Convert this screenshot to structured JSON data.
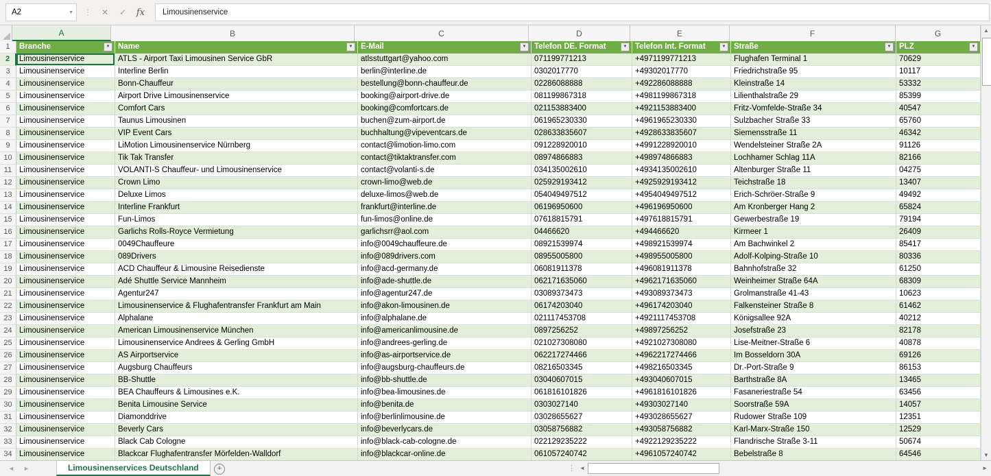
{
  "formula_bar": {
    "cell_reference": "A2",
    "formula_value": "Limousinenservice",
    "fx_label": "fx"
  },
  "icons": {
    "dropdown": "▼",
    "cancel": "✕",
    "enter": "✓",
    "left_arrow": "◄",
    "right_arrow": "►",
    "up_arrow": "▲",
    "down_arrow": "▼",
    "add": "+",
    "splitter": "⋮"
  },
  "selection": {
    "cell": "A2",
    "column": "A",
    "row": 2
  },
  "colors": {
    "header_green": "#70AD47",
    "band_green": "#E2EFDA",
    "active_tab_green": "#217346"
  },
  "grid": {
    "column_letters": [
      "A",
      "B",
      "C",
      "D",
      "E",
      "F",
      "G"
    ],
    "headers": [
      "Branche",
      "Name",
      "E-Mail",
      "Telefon DE. Format",
      "Telefon Int. Format",
      "Straße",
      "PLZ"
    ],
    "first_row_number": 1,
    "rows": [
      {
        "row": 2,
        "cells": [
          "Limousinenservice",
          "ATLS - Airport Taxi Limousinen Service GbR",
          "atlsstuttgart@yahoo.com",
          "071199771213",
          "+4971199771213",
          "Flughafen Terminal 1",
          "70629"
        ]
      },
      {
        "row": 3,
        "cells": [
          "Limousinenservice",
          "Interline Berlin",
          "berlin@interline.de",
          "0302017770",
          "+49302017770",
          "Friedrichstraße 95",
          "10117"
        ]
      },
      {
        "row": 4,
        "cells": [
          "Limousinenservice",
          "Bonn-Chauffeur",
          "bestellung@bonn-chauffeur.de",
          "02286088888",
          "+492286088888",
          "Kleinstraße 14",
          "53332"
        ]
      },
      {
        "row": 5,
        "cells": [
          "Limousinenservice",
          "Airport Drive Limousinenservice",
          "booking@airport-drive.de",
          "081199867318",
          "+4981199867318",
          "Lilienthalstraße 29",
          "85399"
        ]
      },
      {
        "row": 6,
        "cells": [
          "Limousinenservice",
          "Comfort Cars",
          "booking@comfortcars.de",
          "021153883400",
          "+4921153883400",
          "Fritz-Vomfelde-Straße 34",
          "40547"
        ]
      },
      {
        "row": 7,
        "cells": [
          "Limousinenservice",
          "Taunus Limousinen",
          "buchen@zum-airport.de",
          "061965230330",
          "+4961965230330",
          "Sulzbacher Straße 33",
          "65760"
        ]
      },
      {
        "row": 8,
        "cells": [
          "Limousinenservice",
          "VIP Event Cars",
          "buchhaltung@vipeventcars.de",
          "028633835607",
          "+4928633835607",
          "Siemensstraße 11",
          "46342"
        ]
      },
      {
        "row": 9,
        "cells": [
          "Limousinenservice",
          "LiMotion Limousinenservice Nürnberg",
          "contact@limotion-limo.com",
          "091228920010",
          "+4991228920010",
          "Wendelsteiner Straße 2A",
          "91126"
        ]
      },
      {
        "row": 10,
        "cells": [
          "Limousinenservice",
          "Tik Tak Transfer",
          "contact@tiktaktransfer.com",
          "08974866883",
          "+498974866883",
          "Lochhamer Schlag 11A",
          "82166"
        ]
      },
      {
        "row": 11,
        "cells": [
          "Limousinenservice",
          "VOLANTI-S Chauffeur- und Limousinenservice",
          "contact@volanti-s.de",
          "034135002610",
          "+4934135002610",
          "Altenburger Straße 11",
          "04275"
        ]
      },
      {
        "row": 12,
        "cells": [
          "Limousinenservice",
          "Crown Limo",
          "crown-limo@web.de",
          "025929193412",
          "+4925929193412",
          "Teichstraße 18",
          "13407"
        ]
      },
      {
        "row": 13,
        "cells": [
          "Limousinenservice",
          "Deluxe Limos",
          "deluxe-limos@web.de",
          "054049497512",
          "+4954049497512",
          "Erich-Schröer-Straße 9",
          "49492"
        ]
      },
      {
        "row": 14,
        "cells": [
          "Limousinenservice",
          "Interline Frankfurt",
          "frankfurt@interline.de",
          "06196950600",
          "+496196950600",
          "Am Kronberger Hang 2",
          "65824"
        ]
      },
      {
        "row": 15,
        "cells": [
          "Limousinenservice",
          "Fun-Limos",
          "fun-limos@online.de",
          "07618815791",
          "+497618815791",
          "Gewerbestraße 19",
          "79194"
        ]
      },
      {
        "row": 16,
        "cells": [
          "Limousinenservice",
          "Garlichs Rolls-Royce Vermietung",
          "garlichsrr@aol.com",
          "04466620",
          "+494466620",
          "Kirmeer 1",
          "26409"
        ]
      },
      {
        "row": 17,
        "cells": [
          "Limousinenservice",
          "0049Chauffeure",
          "info@0049chauffeure.de",
          "08921539974",
          "+498921539974",
          "Am Bachwinkel 2",
          "85417"
        ]
      },
      {
        "row": 18,
        "cells": [
          "Limousinenservice",
          "089Drivers",
          "info@089drivers.com",
          "08955005800",
          "+498955005800",
          "Adolf-Kolping-Straße 10",
          "80336"
        ]
      },
      {
        "row": 19,
        "cells": [
          "Limousinenservice",
          "ACD Chauffeur & Limousine Reisedienste",
          "info@acd-germany.de",
          "06081911378",
          "+496081911378",
          "Bahnhofstraße 32",
          "61250"
        ]
      },
      {
        "row": 20,
        "cells": [
          "Limousinenservice",
          "Adé Shuttle Service Mannheim",
          "info@ade-shuttle.de",
          "062171635060",
          "+4962171635060",
          "Weinheimer Straße 64A",
          "68309"
        ]
      },
      {
        "row": 21,
        "cells": [
          "Limousinenservice",
          "Agentur247",
          "info@agentur247.de",
          "03089373473",
          "+493089373473",
          "Grolmanstraße 41-43",
          "10623"
        ]
      },
      {
        "row": 22,
        "cells": [
          "Limousinenservice",
          "Limousinenservice & Flughafentransfer Frankfurt am Main",
          "info@akon-limousinen.de",
          "06174203040",
          "+496174203040",
          "Falkensteiner Straße 8",
          "61462"
        ]
      },
      {
        "row": 23,
        "cells": [
          "Limousinenservice",
          "Alphalane",
          "info@alphalane.de",
          "021117453708",
          "+4921117453708",
          "Königsallee 92A",
          "40212"
        ]
      },
      {
        "row": 24,
        "cells": [
          "Limousinenservice",
          "American Limousinenservice München",
          "info@americanlimousine.de",
          "0897256252",
          "+49897256252",
          "Josefstraße 23",
          "82178"
        ]
      },
      {
        "row": 25,
        "cells": [
          "Limousinenservice",
          "Limousinenservice Andrees & Gerling GmbH",
          "info@andrees-gerling.de",
          "021027308080",
          "+4921027308080",
          "Lise-Meitner-Straße 6",
          "40878"
        ]
      },
      {
        "row": 26,
        "cells": [
          "Limousinenservice",
          "AS Airportservice",
          "info@as-airportservice.de",
          "062217274466",
          "+4962217274466",
          "Im Bosseldorn 30A",
          "69126"
        ]
      },
      {
        "row": 27,
        "cells": [
          "Limousinenservice",
          "Augsburg Chauffeurs",
          "info@augsburg-chauffeurs.de",
          "08216503345",
          "+498216503345",
          "Dr.-Port-Straße 9",
          "86153"
        ]
      },
      {
        "row": 28,
        "cells": [
          "Limousinenservice",
          "BB-Shuttle",
          "info@bb-shuttle.de",
          "03040607015",
          "+493040607015",
          "Barthstraße 8A",
          "13465"
        ]
      },
      {
        "row": 29,
        "cells": [
          "Limousinenservice",
          "BEA Chauffeurs & Limousines e.K.",
          "info@bea-limousines.de",
          "061816101826",
          "+4961816101826",
          "Fasaneriestraße 54",
          "63456"
        ]
      },
      {
        "row": 30,
        "cells": [
          "Limousinenservice",
          "Benita Limousine Service",
          "info@benita.de",
          "0303027140",
          "+49303027140",
          "Soorstraße 59A",
          "14057"
        ]
      },
      {
        "row": 31,
        "cells": [
          "Limousinenservice",
          "Diamonddrive",
          "info@berlinlimousine.de",
          "03028655627",
          "+493028655627",
          "Rudower Straße 109",
          "12351"
        ]
      },
      {
        "row": 32,
        "cells": [
          "Limousinenservice",
          "Beverly Cars",
          "info@beverlycars.de",
          "03058756882",
          "+493058756882",
          "Karl-Marx-Straße 150",
          "12529"
        ]
      },
      {
        "row": 33,
        "cells": [
          "Limousinenservice",
          "Black Cab Cologne",
          "info@black-cab-cologne.de",
          "022129235222",
          "+4922129235222",
          "Flandrische Straße 3-11",
          "50674"
        ]
      },
      {
        "row": 34,
        "cells": [
          "Limousinenservice",
          "Blackcar Flughafentransfer Mörfelden-Walldorf",
          "info@blackcar-online.de",
          "061057240742",
          "+4961057240742",
          "Bebelstraße 8",
          "64546"
        ]
      }
    ]
  },
  "sheet_bar": {
    "active_tab": "Limousinenservices Deutschland"
  }
}
